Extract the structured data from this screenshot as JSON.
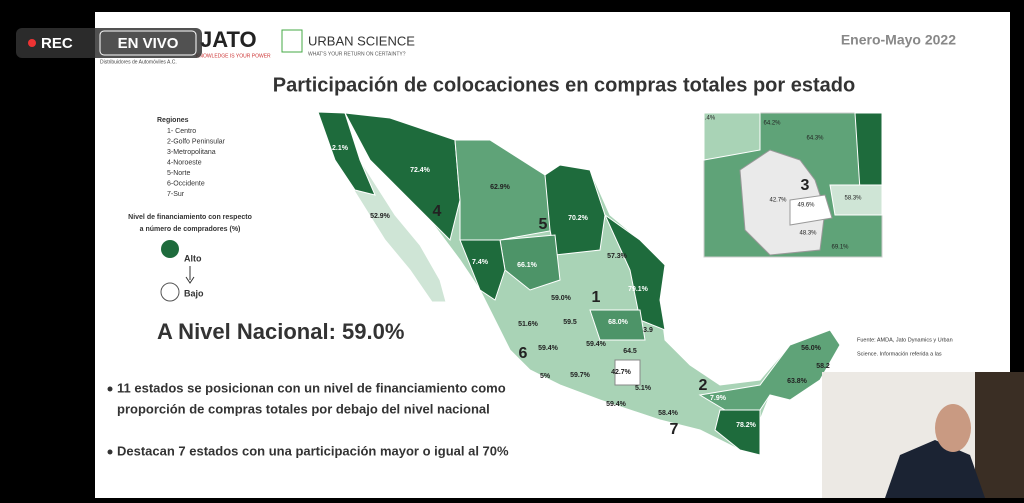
{
  "stream": {
    "rec": "REC",
    "live": "EN VIVO"
  },
  "header": {
    "logo": "JATO",
    "logo_sub": "Distribuidores de Automóviles A.C.",
    "logo_tag": "KNOWLEDGE IS YOUR POWER",
    "brand": "URBAN SCIENCE",
    "brand_tag": "WHAT'S YOUR RETURN ON CERTAINTY?",
    "period": "Enero-Mayo 2022"
  },
  "title": "Participación de colocaciones en compras totales por estado",
  "legend": {
    "regions_title": "Regiones",
    "regions": [
      "1- Centro",
      "2-Golfo Peninsular",
      "3-Metropolitana",
      "4-Noroeste",
      "5-Norte",
      "6-Occidente",
      "7-Sur"
    ],
    "scale_title": [
      "Nivel de financiamiento con respecto",
      "a número de compradores (%)"
    ],
    "high": "Alto",
    "low": "Bajo"
  },
  "national": "A Nivel Nacional: 59.0%",
  "bullets": [
    [
      "11 estados se posicionan con un nivel de financiamiento como",
      "proporción de compras totales por debajo del nivel nacional"
    ],
    [
      "Destacan 7 estados con una participación mayor o igual al 70%"
    ]
  ],
  "source": [
    "Fuente: AMDA, Jato Dynamics y Urban",
    "Science. Información referida a las"
  ],
  "map": {
    "labels": [
      "2.1%",
      "72.4%",
      "62.9%",
      "52.9%",
      "70.2%",
      "66.1%",
      "57.3%",
      "79.1%",
      "7.4%",
      "59.0%",
      "68.0%",
      "3.9",
      "51.6%",
      "59.5",
      "59.4%",
      "59.4%",
      "64.5",
      "42.7%",
      "59.7%",
      "5.1%",
      "5%",
      "59.4%",
      "58.4%",
      "7.9%",
      "78.2%",
      "56.0%",
      "58.2",
      "63.8%"
    ],
    "regions": [
      "1",
      "2",
      "4",
      "5",
      "6",
      "7"
    ]
  },
  "inset": {
    "labels": [
      ".4%",
      "64.2%",
      "64.3%",
      "42.7%",
      "49.6%",
      "58.3%",
      "48.3%",
      "69.1%"
    ],
    "region": "3"
  }
}
